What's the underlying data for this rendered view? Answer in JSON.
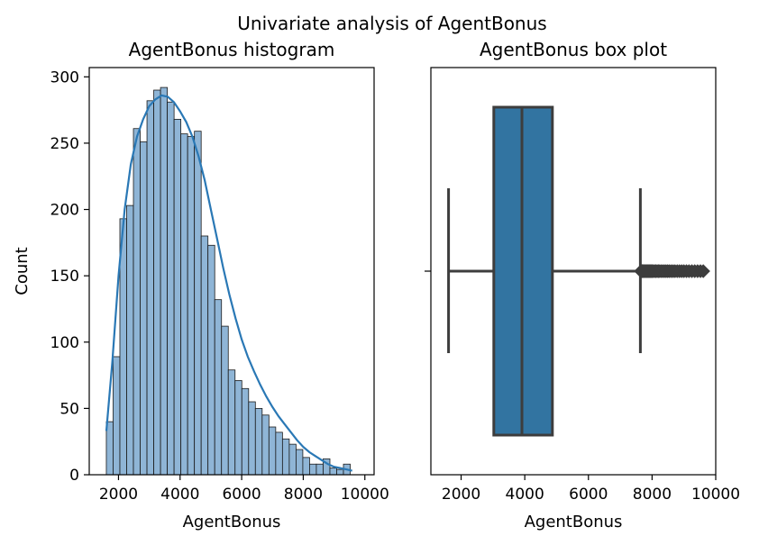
{
  "suptitle": "Univariate analysis of AgentBonus",
  "colors": {
    "hist_fill": "#8fb5d6",
    "hist_edge": "#1a1a1a",
    "kde_line": "#2a78b5",
    "box_fill": "#3274a1",
    "box_edge": "#3d3d3d",
    "axis": "#000000"
  },
  "chart_data": [
    {
      "type": "histogram",
      "title": "AgentBonus histogram",
      "xlabel": "AgentBonus",
      "ylabel": "Count",
      "xlim": [
        1050,
        10300
      ],
      "ylim": [
        0,
        307
      ],
      "xticks": [
        2000,
        4000,
        6000,
        8000,
        10000
      ],
      "yticks": [
        0,
        50,
        100,
        150,
        200,
        250,
        300
      ],
      "bin_start": 1605,
      "bin_width": 220,
      "counts": [
        40,
        89,
        193,
        203,
        261,
        251,
        282,
        290,
        292,
        281,
        268,
        257,
        255,
        259,
        180,
        173,
        132,
        112,
        79,
        71,
        65,
        55,
        50,
        45,
        36,
        32,
        27,
        23,
        19,
        13,
        8,
        8,
        12,
        5,
        4,
        8
      ],
      "kde": {
        "x": [
          1605,
          1800,
          2000,
          2200,
          2400,
          2600,
          2800,
          3000,
          3200,
          3400,
          3600,
          3800,
          4000,
          4200,
          4400,
          4600,
          4800,
          5000,
          5200,
          5400,
          5600,
          5800,
          6000,
          6200,
          6400,
          6600,
          6800,
          7000,
          7200,
          7400,
          7600,
          7800,
          8000,
          8200,
          8400,
          8600,
          8800,
          9000,
          9200,
          9400,
          9590
        ],
        "y": [
          33,
          85,
          150,
          200,
          234,
          255,
          268,
          278,
          283,
          286,
          285,
          281,
          274,
          266,
          255,
          240,
          222,
          200,
          178,
          156,
          136,
          118,
          102,
          89,
          78,
          68,
          59,
          51,
          44,
          38,
          32,
          26,
          21,
          17,
          14,
          11,
          8,
          6,
          5,
          4,
          3
        ]
      },
      "grid": false
    },
    {
      "type": "box",
      "title": "AgentBonus box plot",
      "xlabel": "AgentBonus",
      "xlim": [
        1050,
        10000
      ],
      "xticks": [
        2000,
        4000,
        6000,
        8000,
        10000
      ],
      "whisker_low": 1605,
      "q1": 3027,
      "median": 3911,
      "q3": 4868,
      "whisker_high": 7632,
      "outliers": [
        7650,
        7680,
        7700,
        7720,
        7750,
        7770,
        7800,
        7830,
        7860,
        7890,
        7920,
        7950,
        7980,
        8010,
        8040,
        8080,
        8120,
        8160,
        8200,
        8240,
        8290,
        8340,
        8390,
        8440,
        8490,
        8540,
        8600,
        8660,
        8720,
        8790,
        8860,
        8930,
        9000,
        9080,
        9160,
        9250,
        9340,
        9430,
        9520,
        9608
      ],
      "grid": false
    }
  ]
}
